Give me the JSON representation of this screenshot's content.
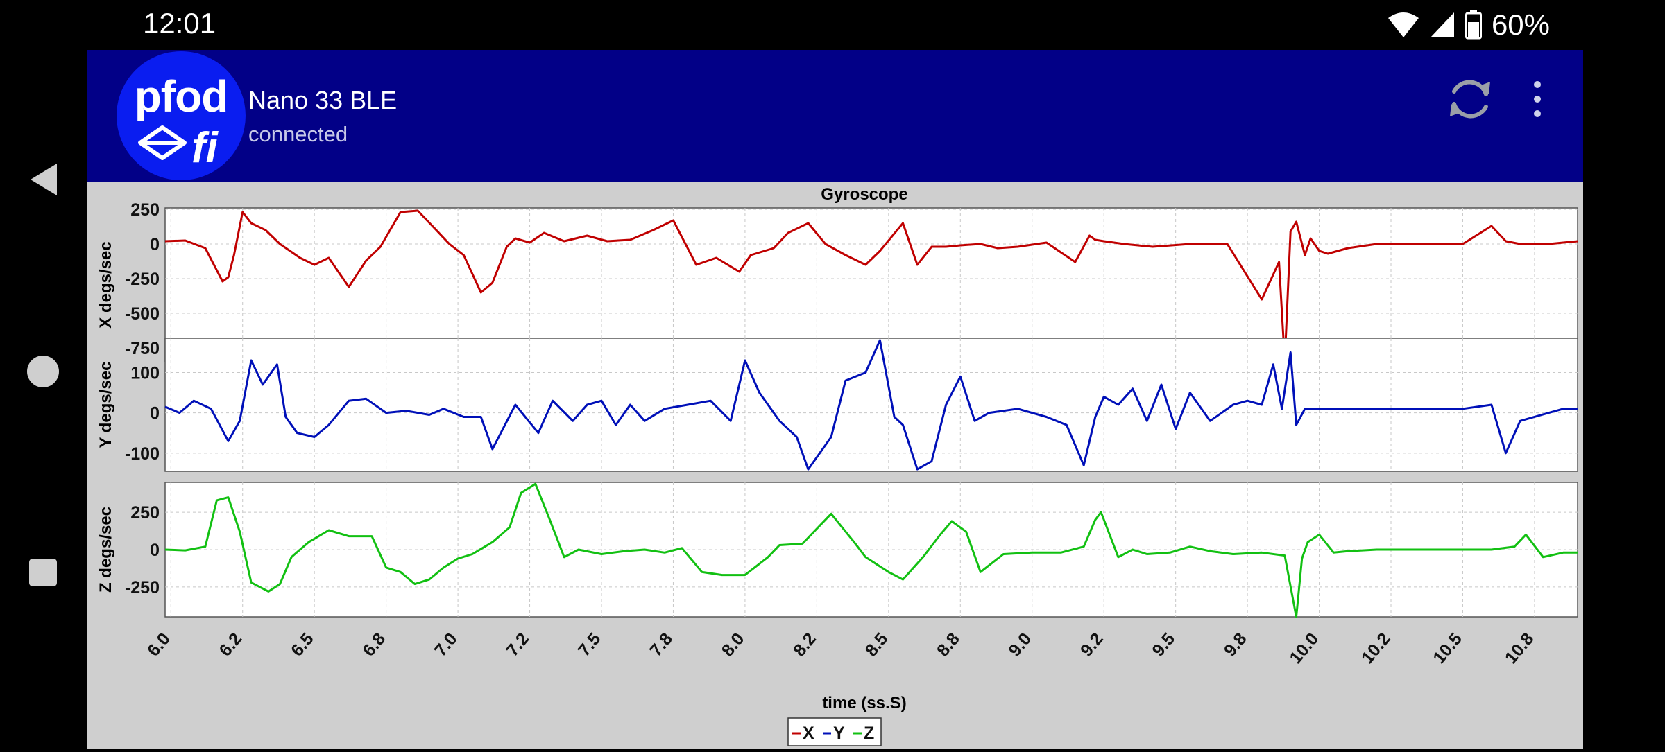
{
  "status_bar": {
    "time": "12:01",
    "battery": "60%"
  },
  "header": {
    "logo_text": "pfod",
    "logo_sub": "fi",
    "title": "Nano 33 BLE",
    "subtitle": "connected",
    "refresh_icon": "refresh-icon",
    "menu_icon": "more-vert-icon"
  },
  "colors": {
    "x": "#c00000",
    "y": "#0010b8",
    "z": "#12c012",
    "header_bg": "#020087",
    "logo_bg": "#0a1df0"
  },
  "chart_data": {
    "type": "line",
    "title": "Gyroscope",
    "xlabel": "time (ss.S)",
    "xlim": [
      5.98,
      10.9
    ],
    "x_ticks": [
      "6.0",
      "6.2",
      "6.5",
      "6.8",
      "7.0",
      "7.2",
      "7.5",
      "7.8",
      "8.0",
      "8.2",
      "8.5",
      "8.8",
      "9.0",
      "9.2",
      "9.5",
      "9.8",
      "10.0",
      "10.2",
      "10.5",
      "10.8"
    ],
    "x_tick_values": [
      6.0,
      6.25,
      6.5,
      6.75,
      7.0,
      7.25,
      7.5,
      7.75,
      8.0,
      8.25,
      8.5,
      8.75,
      9.0,
      9.25,
      9.5,
      9.75,
      10.0,
      10.25,
      10.5,
      10.75
    ],
    "grid": true,
    "legend": {
      "placement": "bottom-center",
      "entries": [
        "X",
        "Y",
        "Z"
      ]
    },
    "panels": [
      {
        "name": "X",
        "ylabel": "X degs/sec",
        "ylim": [
          -850,
          260
        ],
        "y_ticks": [
          250,
          0,
          -250,
          -500,
          -750
        ],
        "x": [
          5.98,
          6.05,
          6.12,
          6.18,
          6.2,
          6.22,
          6.25,
          6.28,
          6.33,
          6.38,
          6.45,
          6.5,
          6.55,
          6.62,
          6.68,
          6.73,
          6.8,
          6.86,
          6.92,
          6.97,
          7.02,
          7.08,
          7.12,
          7.17,
          7.2,
          7.25,
          7.3,
          7.37,
          7.45,
          7.52,
          7.6,
          7.68,
          7.75,
          7.83,
          7.9,
          7.98,
          8.02,
          8.1,
          8.15,
          8.22,
          8.28,
          8.35,
          8.42,
          8.47,
          8.55,
          8.6,
          8.65,
          8.7,
          8.75,
          8.82,
          8.88,
          8.95,
          9.05,
          9.15,
          9.2,
          9.22,
          9.25,
          9.32,
          9.42,
          9.55,
          9.68,
          9.8,
          9.86,
          9.88,
          9.9,
          9.92,
          9.95,
          9.97,
          10.0,
          10.03,
          10.1,
          10.2,
          10.35,
          10.5,
          10.6,
          10.65,
          10.7,
          10.8,
          10.9
        ],
        "y": [
          20,
          25,
          -30,
          -270,
          -240,
          -80,
          230,
          150,
          100,
          0,
          -100,
          -150,
          -100,
          -310,
          -120,
          -20,
          230,
          240,
          110,
          0,
          -80,
          -350,
          -280,
          -20,
          40,
          10,
          80,
          20,
          60,
          20,
          30,
          100,
          170,
          -150,
          -100,
          -200,
          -80,
          -30,
          80,
          150,
          0,
          -80,
          -150,
          -50,
          150,
          -150,
          -20,
          -20,
          -10,
          0,
          -30,
          -20,
          10,
          -130,
          60,
          30,
          20,
          0,
          -20,
          0,
          0,
          -400,
          -130,
          -850,
          90,
          160,
          -80,
          40,
          -50,
          -70,
          -30,
          0,
          0,
          0,
          130,
          20,
          0,
          0,
          20
        ]
      },
      {
        "name": "Y",
        "ylabel": "Y degs/sec",
        "ylim": [
          -145,
          185
        ],
        "y_ticks": [
          100,
          0,
          -100
        ],
        "x": [
          5.98,
          6.03,
          6.08,
          6.14,
          6.2,
          6.24,
          6.28,
          6.32,
          6.37,
          6.4,
          6.44,
          6.5,
          6.55,
          6.62,
          6.68,
          6.75,
          6.82,
          6.9,
          6.95,
          7.02,
          7.08,
          7.12,
          7.2,
          7.28,
          7.33,
          7.4,
          7.45,
          7.5,
          7.55,
          7.6,
          7.65,
          7.72,
          7.8,
          7.88,
          7.95,
          8.0,
          8.05,
          8.12,
          8.18,
          8.22,
          8.3,
          8.35,
          8.42,
          8.47,
          8.52,
          8.55,
          8.6,
          8.65,
          8.7,
          8.75,
          8.8,
          8.85,
          8.95,
          9.05,
          9.12,
          9.18,
          9.22,
          9.25,
          9.3,
          9.35,
          9.4,
          9.45,
          9.5,
          9.55,
          9.62,
          9.7,
          9.75,
          9.8,
          9.84,
          9.87,
          9.9,
          9.92,
          9.95,
          10.0,
          10.1,
          10.2,
          10.35,
          10.5,
          10.6,
          10.65,
          10.7,
          10.8,
          10.85,
          10.9
        ],
        "y": [
          15,
          0,
          30,
          10,
          -70,
          -20,
          130,
          70,
          120,
          -10,
          -50,
          -60,
          -30,
          30,
          35,
          0,
          5,
          -5,
          10,
          -10,
          -10,
          -90,
          20,
          -50,
          30,
          -20,
          20,
          30,
          -30,
          20,
          -20,
          10,
          20,
          30,
          -20,
          130,
          50,
          -20,
          -60,
          -140,
          -60,
          80,
          100,
          180,
          -10,
          -30,
          -140,
          -120,
          20,
          90,
          -20,
          0,
          10,
          -10,
          -30,
          -130,
          -10,
          40,
          20,
          60,
          -20,
          70,
          -40,
          50,
          -20,
          20,
          30,
          20,
          120,
          10,
          150,
          -30,
          10,
          10,
          10,
          10,
          10,
          10,
          20,
          -100,
          -20,
          0,
          10,
          10
        ]
      },
      {
        "name": "Z",
        "ylabel": "Z degs/sec",
        "ylim": [
          -450,
          450
        ],
        "y_ticks": [
          250,
          0,
          -250
        ],
        "x": [
          5.98,
          6.05,
          6.12,
          6.16,
          6.2,
          6.24,
          6.28,
          6.34,
          6.38,
          6.42,
          6.48,
          6.55,
          6.62,
          6.7,
          6.75,
          6.8,
          6.85,
          6.9,
          6.95,
          7.0,
          7.05,
          7.12,
          7.18,
          7.22,
          7.27,
          7.32,
          7.37,
          7.42,
          7.5,
          7.58,
          7.65,
          7.72,
          7.78,
          7.85,
          7.92,
          8.0,
          8.08,
          8.12,
          8.2,
          8.27,
          8.3,
          8.38,
          8.42,
          8.5,
          8.55,
          8.62,
          8.68,
          8.72,
          8.77,
          8.82,
          8.9,
          9.0,
          9.1,
          9.18,
          9.22,
          9.24,
          9.3,
          9.35,
          9.4,
          9.48,
          9.55,
          9.62,
          9.7,
          9.8,
          9.88,
          9.92,
          9.94,
          9.96,
          10.0,
          10.05,
          10.1,
          10.2,
          10.3,
          10.4,
          10.5,
          10.6,
          10.68,
          10.72,
          10.78,
          10.85,
          10.9
        ],
        "y": [
          0,
          -5,
          20,
          330,
          350,
          120,
          -220,
          -280,
          -230,
          -50,
          50,
          130,
          90,
          90,
          -120,
          -150,
          -230,
          -200,
          -120,
          -60,
          -30,
          50,
          150,
          380,
          440,
          200,
          -50,
          0,
          -30,
          -10,
          0,
          -20,
          10,
          -150,
          -170,
          -170,
          -50,
          30,
          40,
          180,
          240,
          50,
          -50,
          -150,
          -200,
          -50,
          100,
          190,
          120,
          -150,
          -30,
          -20,
          -20,
          20,
          200,
          250,
          -50,
          0,
          -30,
          -20,
          20,
          -10,
          -30,
          -20,
          -40,
          -450,
          -60,
          50,
          100,
          -20,
          -10,
          0,
          0,
          0,
          0,
          0,
          20,
          100,
          -50,
          -20,
          -20
        ]
      }
    ]
  }
}
